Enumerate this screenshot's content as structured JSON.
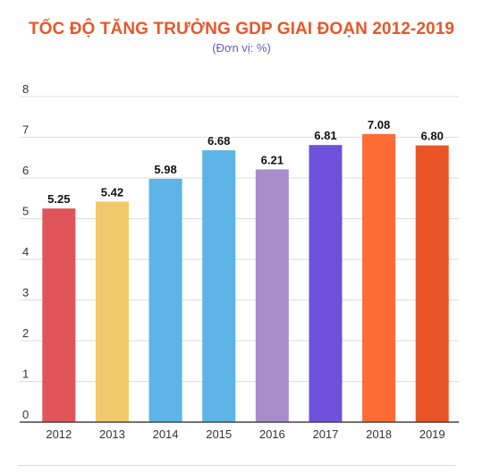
{
  "chart_data": {
    "type": "bar",
    "title": "TỐC ĐỘ TĂNG TRƯỞNG GDP GIAI ĐOẠN 2012-2019",
    "subtitle": "(Đơn vị: %)",
    "xlabel": "",
    "ylabel": "",
    "ylim": [
      0,
      8
    ],
    "yticks": [
      "0",
      "1",
      "2",
      "3",
      "4",
      "5",
      "6",
      "7",
      "8"
    ],
    "grid": true,
    "categories": [
      "2012",
      "2013",
      "2014",
      "2015",
      "2016",
      "2017",
      "2018",
      "2019"
    ],
    "values": [
      5.25,
      5.42,
      5.98,
      6.68,
      6.21,
      6.81,
      7.08,
      6.8
    ],
    "value_labels": [
      "5.25",
      "5.42",
      "5.98",
      "6.68",
      "6.21",
      "6.81",
      "7.08",
      "6.80"
    ],
    "colors": [
      "#e0555a",
      "#f2c96a",
      "#5db4e6",
      "#5db4e6",
      "#a98ccb",
      "#6f52dc",
      "#fd6b35",
      "#e85426"
    ]
  }
}
